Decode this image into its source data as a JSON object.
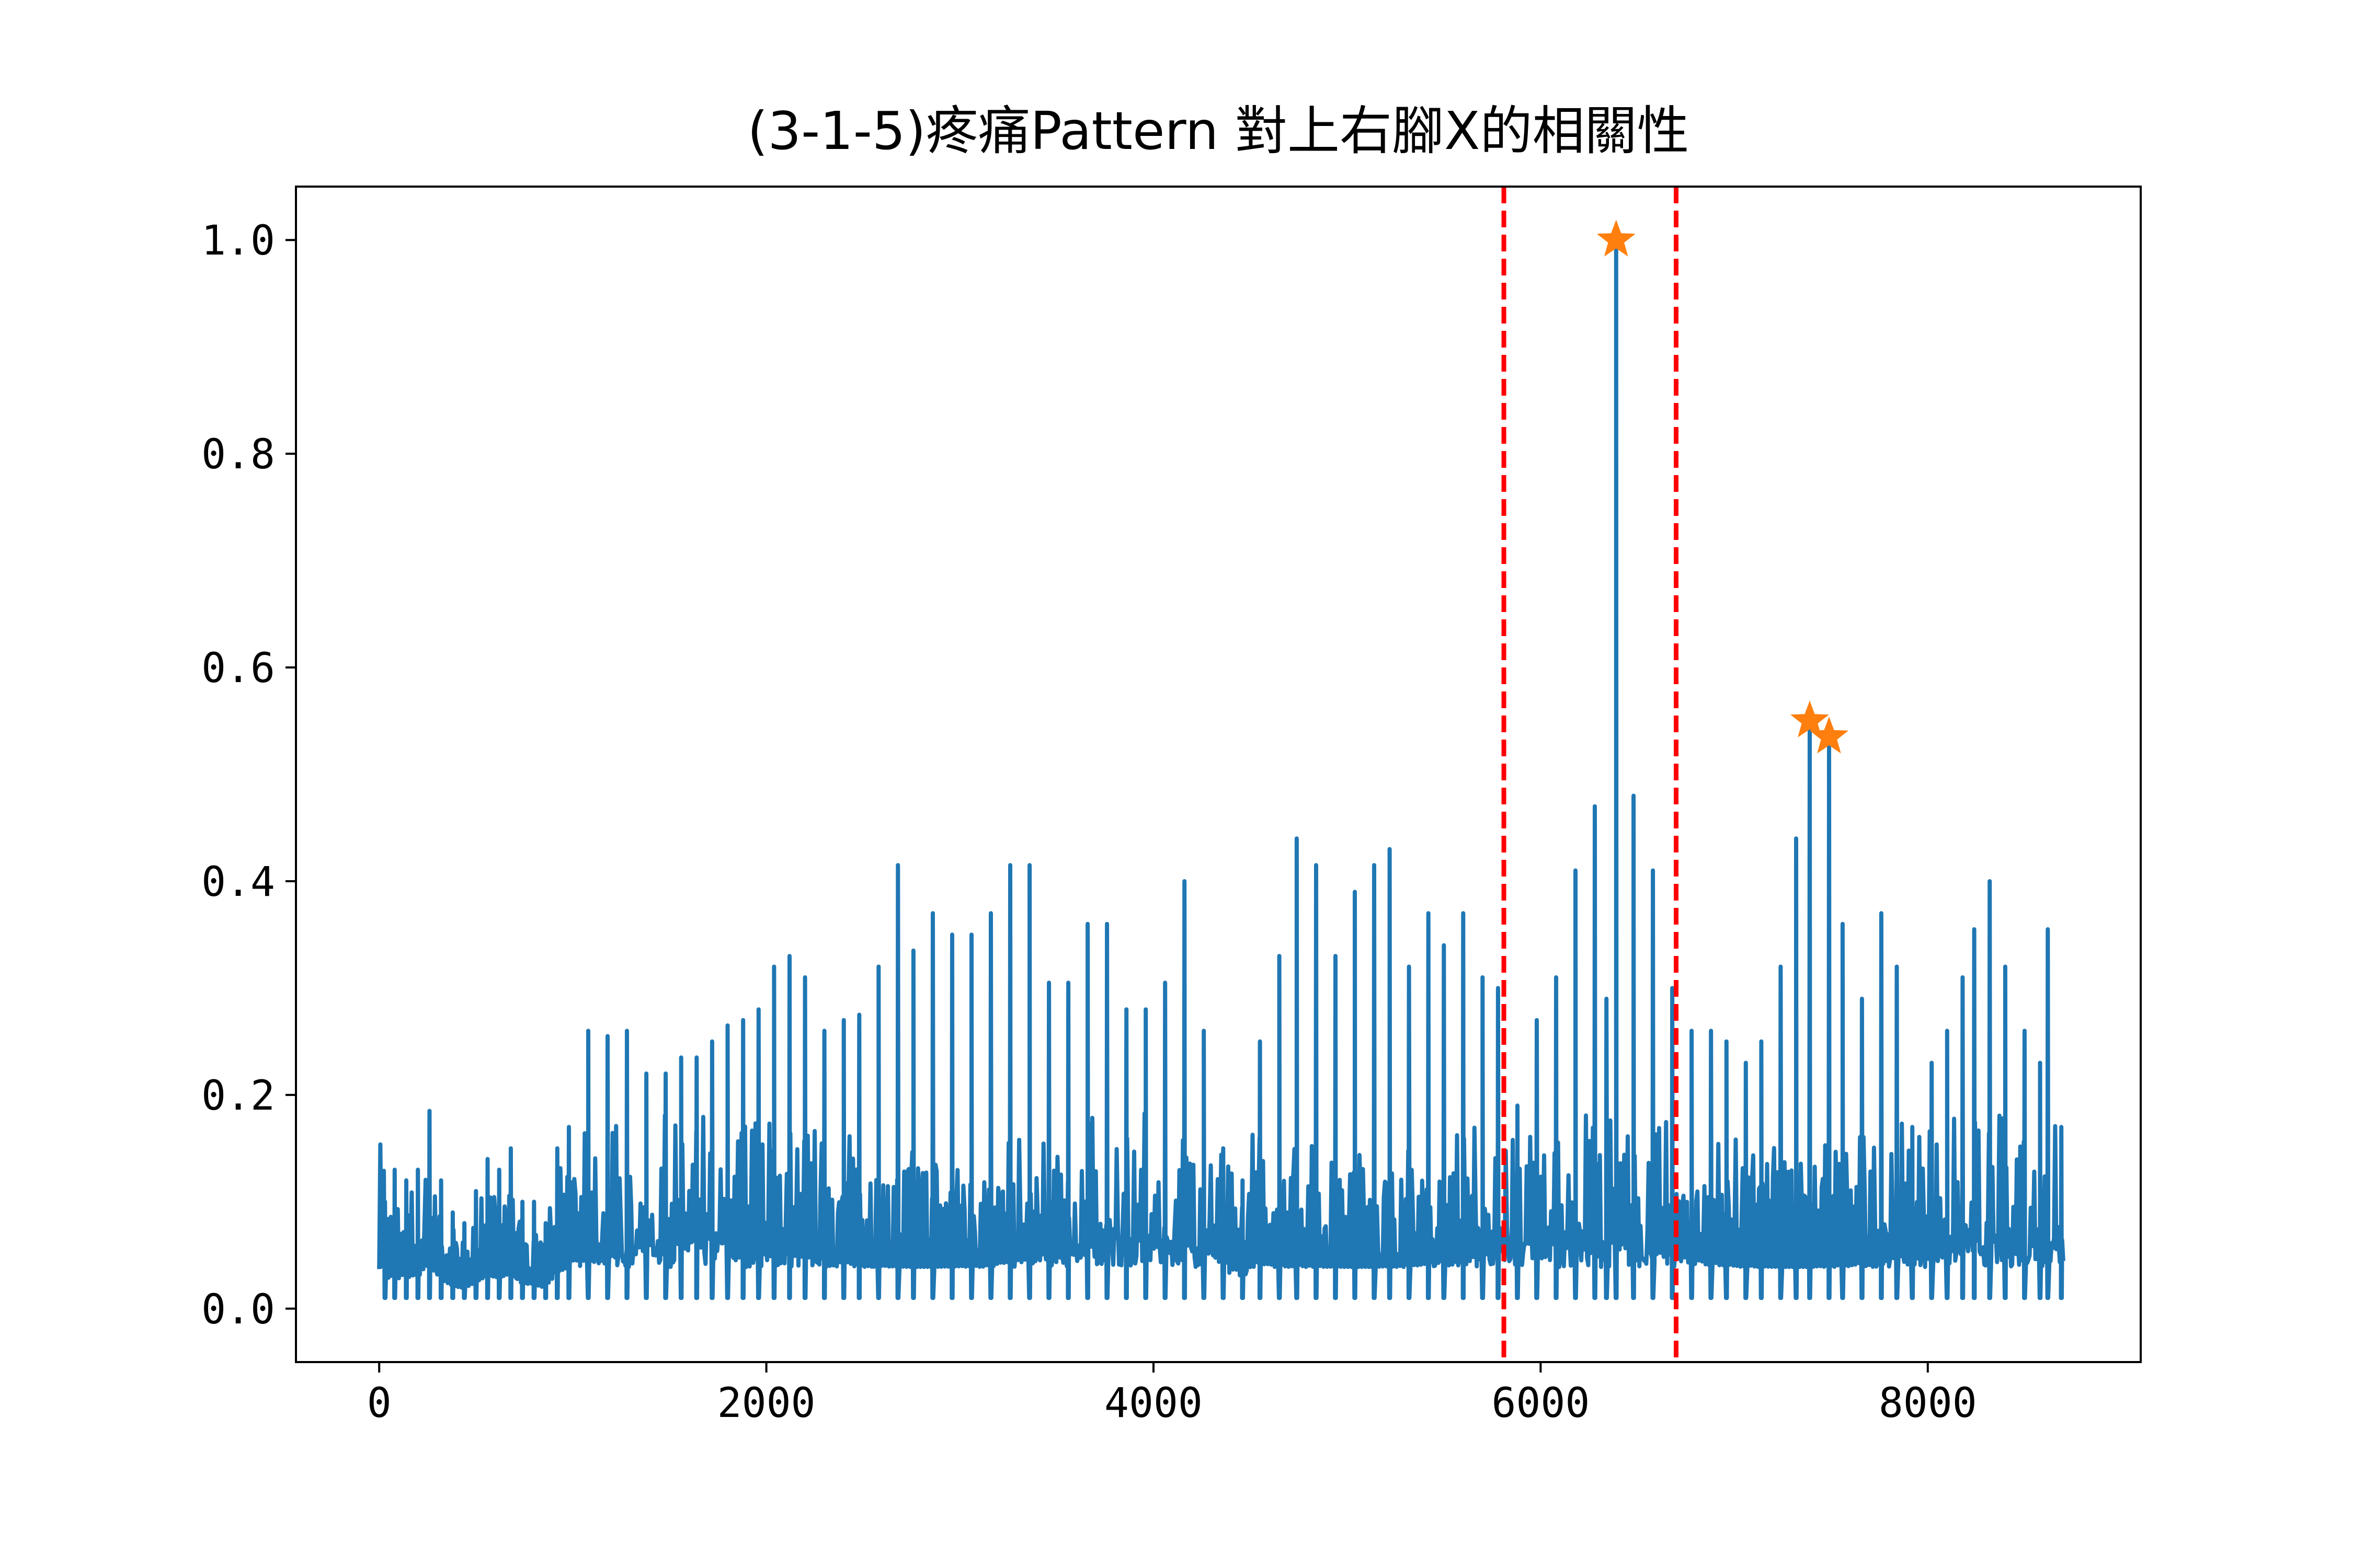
{
  "chart_data": {
    "type": "line",
    "title": "(3-1-5)疼痛Pattern 對上右腳X的相關性",
    "xlabel": "",
    "ylabel": "",
    "xlim": [
      -430,
      9100
    ],
    "ylim": [
      -0.05,
      1.05
    ],
    "xticks": [
      0,
      2000,
      4000,
      6000,
      8000
    ],
    "xtick_labels": [
      "0",
      "2000",
      "4000",
      "6000",
      "8000"
    ],
    "yticks": [
      0.0,
      0.2,
      0.4,
      0.6,
      0.8,
      1.0
    ],
    "ytick_labels": [
      "0.0",
      "0.2",
      "0.4",
      "0.6",
      "0.8",
      "1.0"
    ],
    "grid": false,
    "series_color": "#1f77b4",
    "x_range": [
      0,
      8700
    ],
    "peaks": [
      {
        "x": 30,
        "y": 0.1
      },
      {
        "x": 80,
        "y": 0.13
      },
      {
        "x": 140,
        "y": 0.12
      },
      {
        "x": 200,
        "y": 0.13
      },
      {
        "x": 260,
        "y": 0.185
      },
      {
        "x": 320,
        "y": 0.12
      },
      {
        "x": 380,
        "y": 0.09
      },
      {
        "x": 440,
        "y": 0.08
      },
      {
        "x": 500,
        "y": 0.11
      },
      {
        "x": 560,
        "y": 0.14
      },
      {
        "x": 620,
        "y": 0.13
      },
      {
        "x": 680,
        "y": 0.15
      },
      {
        "x": 740,
        "y": 0.1
      },
      {
        "x": 800,
        "y": 0.1
      },
      {
        "x": 860,
        "y": 0.08
      },
      {
        "x": 920,
        "y": 0.15
      },
      {
        "x": 980,
        "y": 0.17
      },
      {
        "x": 1080,
        "y": 0.26
      },
      {
        "x": 1180,
        "y": 0.255
      },
      {
        "x": 1280,
        "y": 0.26
      },
      {
        "x": 1380,
        "y": 0.22
      },
      {
        "x": 1480,
        "y": 0.22
      },
      {
        "x": 1560,
        "y": 0.235
      },
      {
        "x": 1640,
        "y": 0.235
      },
      {
        "x": 1720,
        "y": 0.25
      },
      {
        "x": 1800,
        "y": 0.265
      },
      {
        "x": 1880,
        "y": 0.27
      },
      {
        "x": 1960,
        "y": 0.28
      },
      {
        "x": 2040,
        "y": 0.32
      },
      {
        "x": 2120,
        "y": 0.33
      },
      {
        "x": 2200,
        "y": 0.31
      },
      {
        "x": 2300,
        "y": 0.26
      },
      {
        "x": 2400,
        "y": 0.27
      },
      {
        "x": 2480,
        "y": 0.275
      },
      {
        "x": 2580,
        "y": 0.32
      },
      {
        "x": 2680,
        "y": 0.415
      },
      {
        "x": 2760,
        "y": 0.335
      },
      {
        "x": 2860,
        "y": 0.37
      },
      {
        "x": 2960,
        "y": 0.35
      },
      {
        "x": 3060,
        "y": 0.35
      },
      {
        "x": 3160,
        "y": 0.37
      },
      {
        "x": 3260,
        "y": 0.415
      },
      {
        "x": 3360,
        "y": 0.415
      },
      {
        "x": 3460,
        "y": 0.305
      },
      {
        "x": 3560,
        "y": 0.305
      },
      {
        "x": 3660,
        "y": 0.36
      },
      {
        "x": 3760,
        "y": 0.36
      },
      {
        "x": 3860,
        "y": 0.28
      },
      {
        "x": 3960,
        "y": 0.28
      },
      {
        "x": 4060,
        "y": 0.305
      },
      {
        "x": 4160,
        "y": 0.4
      },
      {
        "x": 4260,
        "y": 0.26
      },
      {
        "x": 4360,
        "y": 0.15
      },
      {
        "x": 4460,
        "y": 0.12
      },
      {
        "x": 4550,
        "y": 0.25
      },
      {
        "x": 4650,
        "y": 0.33
      },
      {
        "x": 4740,
        "y": 0.44
      },
      {
        "x": 4840,
        "y": 0.415
      },
      {
        "x": 4940,
        "y": 0.33
      },
      {
        "x": 5040,
        "y": 0.39
      },
      {
        "x": 5140,
        "y": 0.415
      },
      {
        "x": 5220,
        "y": 0.43
      },
      {
        "x": 5320,
        "y": 0.32
      },
      {
        "x": 5420,
        "y": 0.37
      },
      {
        "x": 5500,
        "y": 0.34
      },
      {
        "x": 5600,
        "y": 0.37
      },
      {
        "x": 5700,
        "y": 0.31
      },
      {
        "x": 5780,
        "y": 0.3
      },
      {
        "x": 5880,
        "y": 0.19
      },
      {
        "x": 5980,
        "y": 0.27
      },
      {
        "x": 6080,
        "y": 0.31
      },
      {
        "x": 6180,
        "y": 0.41
      },
      {
        "x": 6280,
        "y": 0.47
      },
      {
        "x": 6340,
        "y": 0.29
      },
      {
        "x": 6390,
        "y": 1.0
      },
      {
        "x": 6480,
        "y": 0.48
      },
      {
        "x": 6580,
        "y": 0.41
      },
      {
        "x": 6680,
        "y": 0.3
      },
      {
        "x": 6780,
        "y": 0.26
      },
      {
        "x": 6880,
        "y": 0.26
      },
      {
        "x": 6960,
        "y": 0.25
      },
      {
        "x": 7060,
        "y": 0.23
      },
      {
        "x": 7140,
        "y": 0.25
      },
      {
        "x": 7240,
        "y": 0.32
      },
      {
        "x": 7320,
        "y": 0.44
      },
      {
        "x": 7390,
        "y": 0.55
      },
      {
        "x": 7490,
        "y": 0.535
      },
      {
        "x": 7560,
        "y": 0.36
      },
      {
        "x": 7660,
        "y": 0.29
      },
      {
        "x": 7760,
        "y": 0.37
      },
      {
        "x": 7840,
        "y": 0.32
      },
      {
        "x": 7920,
        "y": 0.17
      },
      {
        "x": 8020,
        "y": 0.23
      },
      {
        "x": 8100,
        "y": 0.26
      },
      {
        "x": 8180,
        "y": 0.31
      },
      {
        "x": 8240,
        "y": 0.355
      },
      {
        "x": 8320,
        "y": 0.4
      },
      {
        "x": 8400,
        "y": 0.32
      },
      {
        "x": 8500,
        "y": 0.26
      },
      {
        "x": 8580,
        "y": 0.23
      },
      {
        "x": 8620,
        "y": 0.355
      },
      {
        "x": 8690,
        "y": 0.17
      }
    ],
    "markers": [
      {
        "x": 6390,
        "y": 1.0
      },
      {
        "x": 7390,
        "y": 0.55
      },
      {
        "x": 7490,
        "y": 0.535
      }
    ],
    "marker_color": "#ff7f0e",
    "vlines": [
      {
        "x": 5810,
        "color": "#ff0000",
        "style": "dashed"
      },
      {
        "x": 6700,
        "color": "#ff0000",
        "style": "dashed"
      }
    ]
  }
}
